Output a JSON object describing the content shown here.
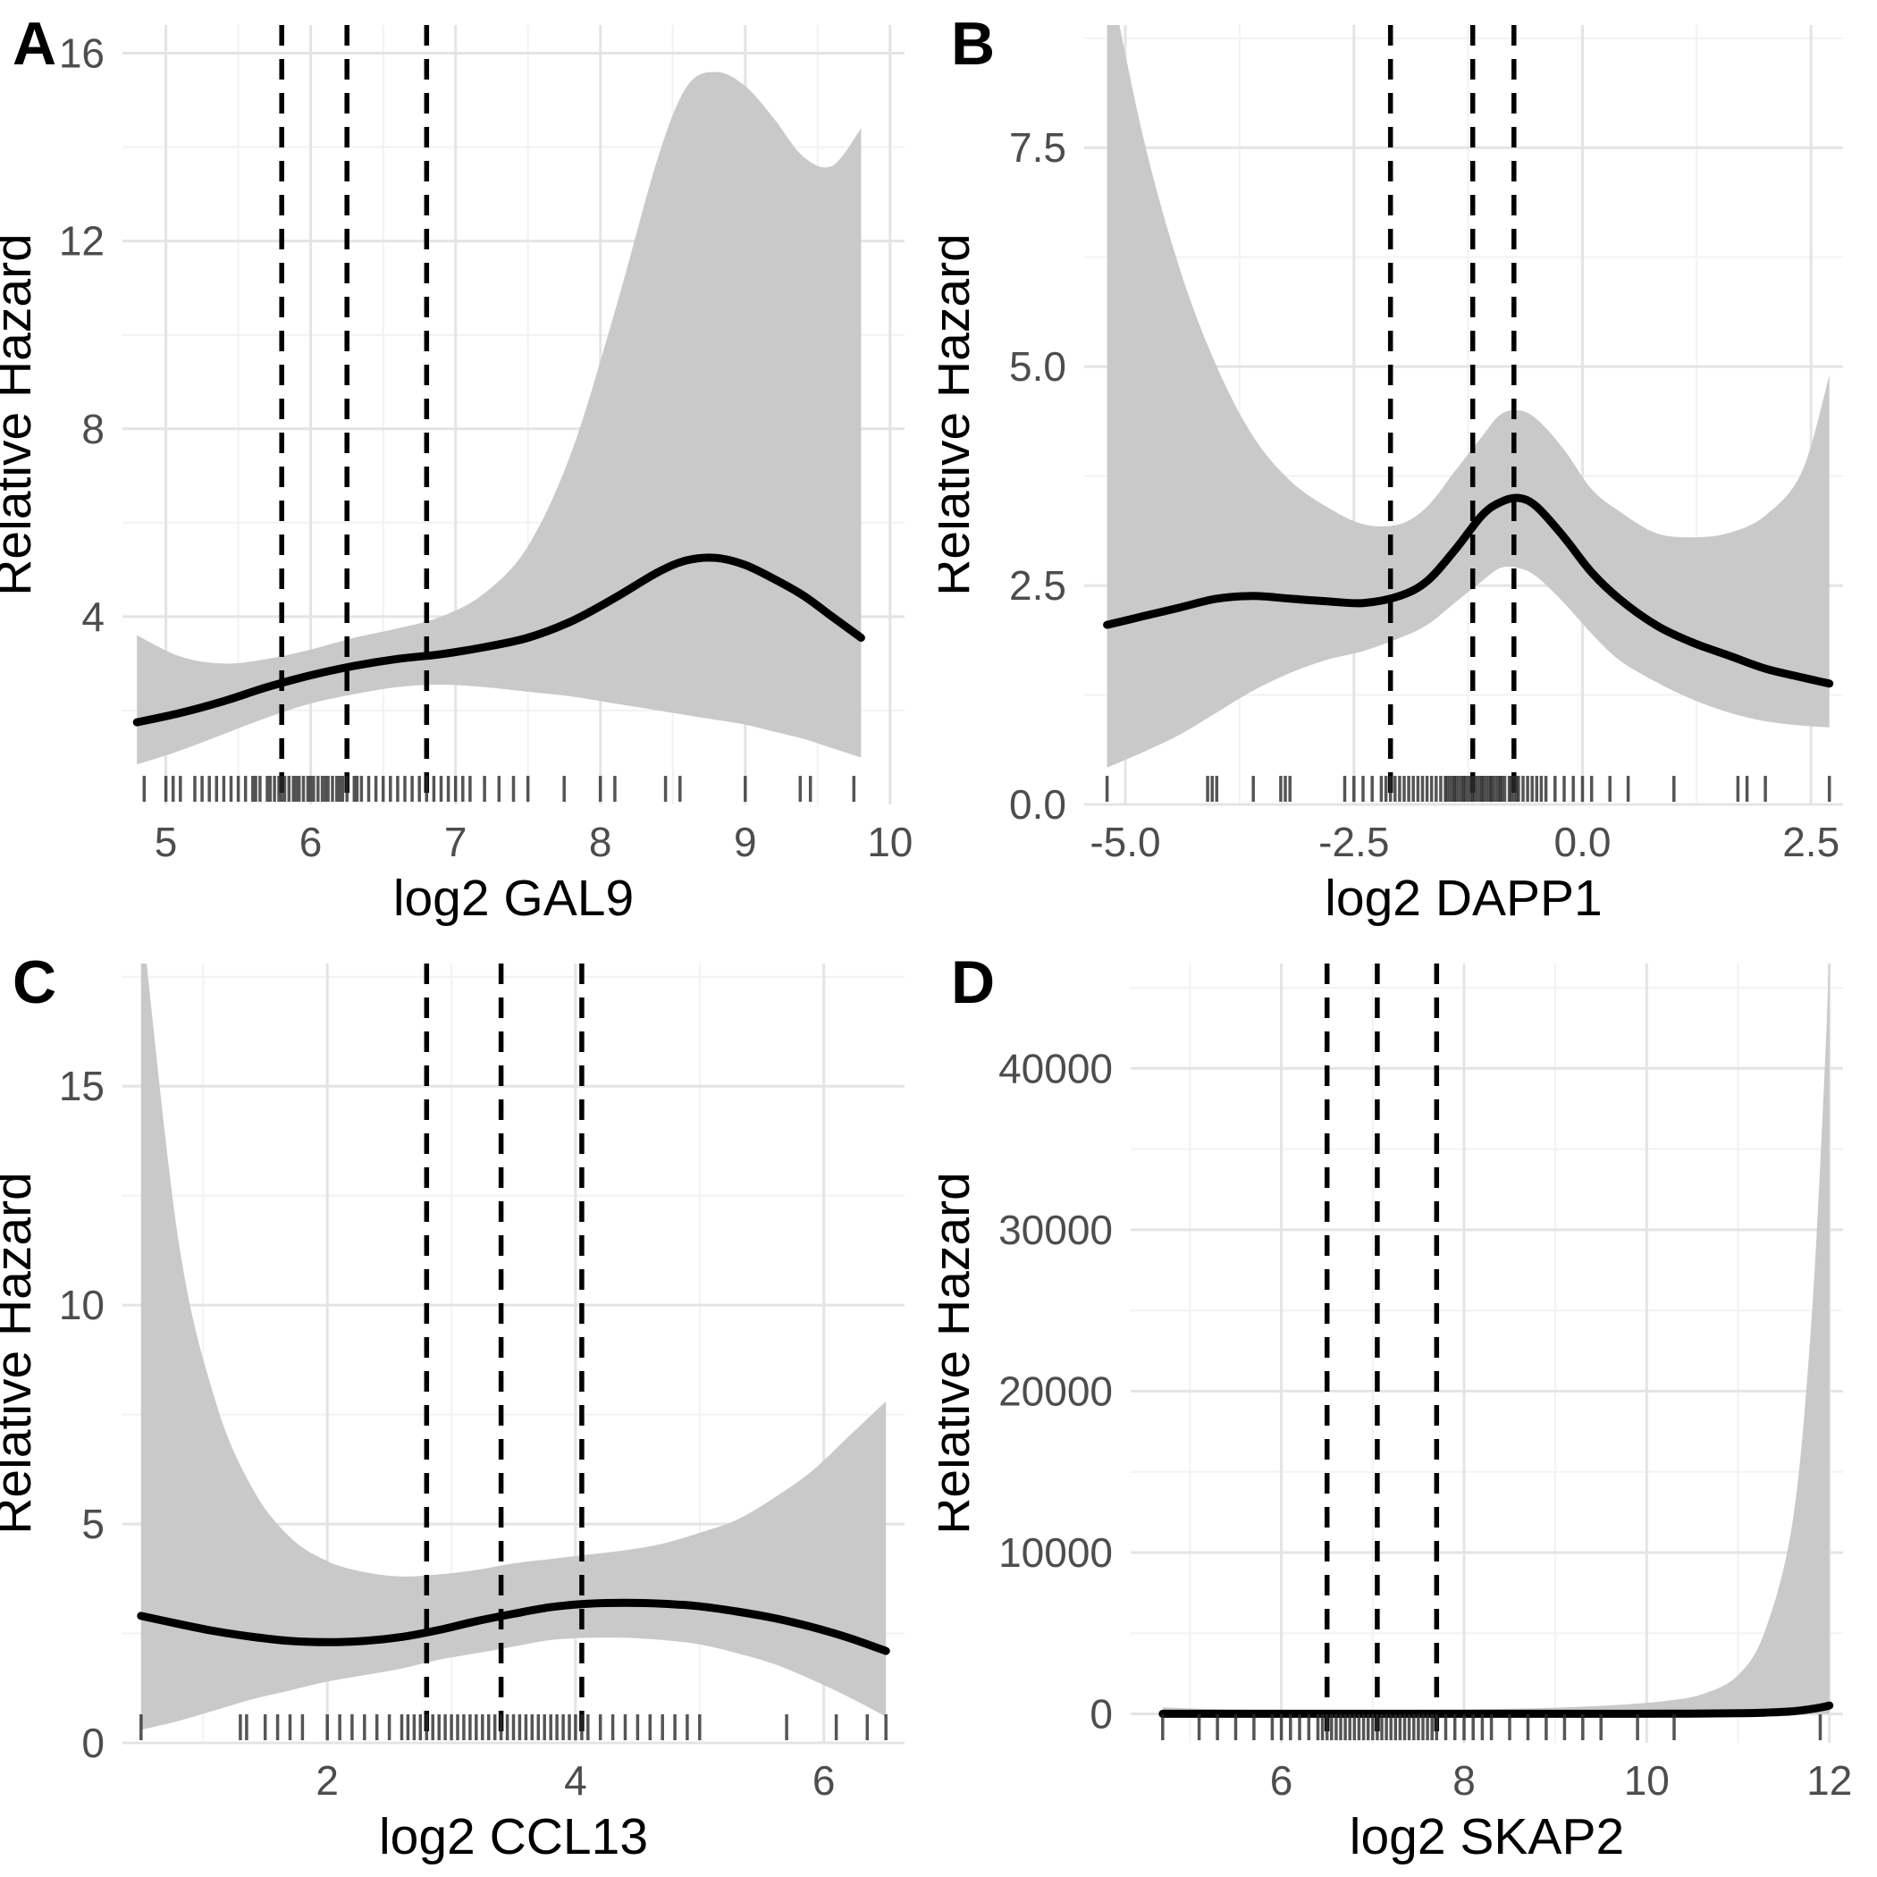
{
  "figure": {
    "background": "#ffffff",
    "panel_labels": [
      "A",
      "B",
      "C",
      "D"
    ]
  },
  "colors": {
    "background": "#ffffff",
    "grid_major": "#e4e4e4",
    "grid_minor": "#f2f2f2",
    "band": "#c9c9c9",
    "line": "#000000",
    "quartile": "#000000",
    "rug": "#2b2b2b",
    "tick_text": "#4d4d4d",
    "title_text": "#000000"
  },
  "chart_data": [
    {
      "type": "line",
      "panel_label": "A",
      "xlabel": "log2 GAL9",
      "ylabel": "Relative Hazard",
      "xlim": [
        4.7,
        10.1
      ],
      "ylim": [
        0,
        16.6
      ],
      "x_ticks": [
        5,
        6,
        7,
        8,
        9,
        10
      ],
      "x_tick_labels": [
        "5",
        "6",
        "7",
        "8",
        "9",
        "10"
      ],
      "y_ticks": [
        4,
        8,
        12,
        16
      ],
      "y_tick_labels": [
        "4",
        "8",
        "12",
        "16"
      ],
      "x": [
        4.8,
        5.1,
        5.4,
        5.7,
        6.0,
        6.3,
        6.6,
        6.9,
        7.2,
        7.5,
        7.8,
        8.1,
        8.4,
        8.6,
        8.8,
        9.0,
        9.2,
        9.4,
        9.6,
        9.8
      ],
      "fit": [
        1.75,
        1.95,
        2.2,
        2.5,
        2.75,
        2.95,
        3.1,
        3.2,
        3.35,
        3.55,
        3.9,
        4.4,
        4.95,
        5.2,
        5.25,
        5.1,
        4.8,
        4.45,
        4.0,
        3.55
      ],
      "ci_upper": [
        3.6,
        3.15,
        3.0,
        3.1,
        3.3,
        3.55,
        3.75,
        4.0,
        4.5,
        5.5,
        7.5,
        10.5,
        13.8,
        15.3,
        15.6,
        15.3,
        14.6,
        13.8,
        13.6,
        14.4
      ],
      "ci_lower": [
        0.85,
        1.15,
        1.5,
        1.85,
        2.15,
        2.35,
        2.5,
        2.55,
        2.5,
        2.4,
        2.3,
        2.15,
        2.0,
        1.9,
        1.8,
        1.7,
        1.55,
        1.4,
        1.2,
        1.0
      ],
      "quartile_lines": [
        5.8,
        6.25,
        6.8
      ],
      "rug": [
        4.85,
        5.0,
        5.05,
        5.1,
        5.2,
        5.25,
        5.3,
        5.35,
        5.4,
        5.45,
        5.5,
        5.55,
        5.6,
        5.62,
        5.65,
        5.7,
        5.72,
        5.75,
        5.78,
        5.8,
        5.82,
        5.85,
        5.88,
        5.9,
        5.92,
        5.95,
        5.98,
        6.0,
        6.02,
        6.05,
        6.08,
        6.1,
        6.12,
        6.15,
        6.18,
        6.2,
        6.22,
        6.25,
        6.3,
        6.32,
        6.35,
        6.4,
        6.45,
        6.5,
        6.55,
        6.6,
        6.65,
        6.7,
        6.75,
        6.8,
        6.85,
        6.9,
        6.95,
        7.0,
        7.05,
        7.1,
        7.2,
        7.3,
        7.4,
        7.5,
        7.75,
        8.0,
        8.1,
        8.45,
        8.55,
        9.0,
        9.38,
        9.45,
        9.75
      ]
    },
    {
      "type": "line",
      "panel_label": "B",
      "xlabel": "log2 DAPP1",
      "ylabel": "Relative Hazard",
      "xlim": [
        -5.45,
        2.85
      ],
      "ylim": [
        0,
        8.9
      ],
      "x_ticks": [
        -5.0,
        -2.5,
        0.0,
        2.5
      ],
      "x_tick_labels": [
        "-5.0",
        "-2.5",
        "0.0",
        "2.5"
      ],
      "y_ticks": [
        0.0,
        2.5,
        5.0,
        7.5
      ],
      "y_tick_labels": [
        "0.0",
        "2.5",
        "5.0",
        "7.5"
      ],
      "x": [
        -5.2,
        -4.8,
        -4.4,
        -4.0,
        -3.6,
        -3.2,
        -2.8,
        -2.4,
        -2.0,
        -1.7,
        -1.4,
        -1.1,
        -0.9,
        -0.7,
        -0.5,
        -0.2,
        0.1,
        0.4,
        0.8,
        1.2,
        1.6,
        2.0,
        2.4,
        2.7
      ],
      "fit": [
        2.05,
        2.15,
        2.25,
        2.35,
        2.38,
        2.35,
        2.32,
        2.3,
        2.38,
        2.55,
        2.9,
        3.3,
        3.45,
        3.5,
        3.4,
        3.05,
        2.65,
        2.35,
        2.05,
        1.85,
        1.7,
        1.55,
        1.45,
        1.38
      ],
      "ci_upper": [
        9.6,
        7.6,
        6.1,
        5.0,
        4.2,
        3.7,
        3.4,
        3.2,
        3.2,
        3.4,
        3.8,
        4.2,
        4.45,
        4.5,
        4.4,
        4.05,
        3.6,
        3.35,
        3.1,
        3.05,
        3.1,
        3.3,
        3.8,
        4.9
      ],
      "ci_lower": [
        0.42,
        0.6,
        0.8,
        1.05,
        1.3,
        1.5,
        1.65,
        1.75,
        1.9,
        2.05,
        2.3,
        2.55,
        2.7,
        2.7,
        2.6,
        2.3,
        1.95,
        1.65,
        1.4,
        1.2,
        1.05,
        0.95,
        0.9,
        0.88
      ],
      "quartile_lines": [
        -2.1,
        -1.2,
        -0.75
      ],
      "rug": [
        -5.2,
        -4.1,
        -4.05,
        -4.0,
        -3.6,
        -3.3,
        -3.25,
        -3.2,
        -2.6,
        -2.5,
        -2.4,
        -2.3,
        -2.2,
        -2.15,
        -2.1,
        -2.05,
        -2.0,
        -1.95,
        -1.9,
        -1.85,
        -1.8,
        -1.75,
        -1.7,
        -1.65,
        -1.6,
        -1.55,
        -1.5,
        -1.48,
        -1.45,
        -1.42,
        -1.4,
        -1.38,
        -1.35,
        -1.32,
        -1.3,
        -1.28,
        -1.25,
        -1.22,
        -1.2,
        -1.18,
        -1.15,
        -1.12,
        -1.1,
        -1.08,
        -1.05,
        -1.02,
        -1.0,
        -0.98,
        -0.95,
        -0.92,
        -0.9,
        -0.88,
        -0.85,
        -0.8,
        -0.78,
        -0.75,
        -0.72,
        -0.7,
        -0.65,
        -0.6,
        -0.55,
        -0.5,
        -0.45,
        -0.4,
        -0.3,
        -0.2,
        -0.1,
        0.0,
        0.1,
        0.3,
        0.5,
        1.0,
        1.7,
        1.8,
        2.0,
        2.7
      ],
      "x_tick_decimals": 1
    },
    {
      "type": "line",
      "panel_label": "C",
      "xlabel": "log2 CCL13",
      "ylabel": "Relative Hazard",
      "xlim": [
        0.35,
        6.65
      ],
      "ylim": [
        0,
        17.8
      ],
      "x_ticks": [
        2,
        4,
        6
      ],
      "x_tick_labels": [
        "2",
        "4",
        "6"
      ],
      "y_ticks": [
        0,
        5,
        10,
        15
      ],
      "y_tick_labels": [
        "0",
        "5",
        "10",
        "15"
      ],
      "x": [
        0.5,
        0.8,
        1.1,
        1.4,
        1.7,
        2.0,
        2.3,
        2.6,
        2.9,
        3.2,
        3.5,
        3.8,
        4.1,
        4.4,
        4.7,
        5.0,
        5.3,
        5.6,
        5.9,
        6.2,
        6.5
      ],
      "fit": [
        2.9,
        2.72,
        2.55,
        2.42,
        2.33,
        2.3,
        2.33,
        2.42,
        2.58,
        2.78,
        2.95,
        3.1,
        3.18,
        3.2,
        3.18,
        3.12,
        3.0,
        2.85,
        2.65,
        2.4,
        2.1
      ],
      "ci_upper": [
        19.0,
        11.5,
        7.8,
        5.8,
        4.7,
        4.15,
        3.9,
        3.8,
        3.85,
        3.95,
        4.1,
        4.2,
        4.3,
        4.4,
        4.55,
        4.8,
        5.1,
        5.6,
        6.2,
        7.0,
        7.8
      ],
      "ci_lower": [
        0.3,
        0.5,
        0.75,
        1.0,
        1.2,
        1.4,
        1.55,
        1.7,
        1.9,
        2.05,
        2.2,
        2.35,
        2.4,
        2.4,
        2.35,
        2.25,
        2.05,
        1.8,
        1.45,
        1.05,
        0.6
      ],
      "quartile_lines": [
        2.8,
        3.4,
        4.05
      ],
      "rug": [
        0.5,
        1.3,
        1.35,
        1.5,
        1.6,
        1.7,
        1.8,
        2.0,
        2.1,
        2.2,
        2.3,
        2.4,
        2.5,
        2.6,
        2.65,
        2.7,
        2.75,
        2.8,
        2.85,
        2.9,
        2.95,
        3.0,
        3.05,
        3.1,
        3.15,
        3.2,
        3.25,
        3.3,
        3.35,
        3.4,
        3.45,
        3.5,
        3.55,
        3.6,
        3.65,
        3.7,
        3.75,
        3.8,
        3.85,
        3.9,
        3.95,
        4.0,
        4.05,
        4.1,
        4.2,
        4.3,
        4.4,
        4.5,
        4.6,
        4.7,
        4.8,
        4.9,
        5.0,
        5.7,
        6.1,
        6.35,
        6.5
      ]
    },
    {
      "type": "line",
      "panel_label": "D",
      "xlabel": "log2 SKAP2",
      "ylabel": "Relative Hazard",
      "xlim": [
        4.35,
        12.15
      ],
      "ylim": [
        -1800,
        46500
      ],
      "x_ticks": [
        6,
        8,
        10,
        12
      ],
      "x_tick_labels": [
        "6",
        "8",
        "10",
        "12"
      ],
      "y_ticks": [
        0,
        10000,
        20000,
        30000,
        40000
      ],
      "y_tick_labels": [
        "0",
        "10000",
        "20000",
        "30000",
        "40000"
      ],
      "x": [
        4.7,
        5.2,
        5.7,
        6.2,
        6.7,
        7.2,
        7.7,
        8.2,
        8.7,
        9.2,
        9.7,
        10.2,
        10.6,
        11.0,
        11.3,
        11.6,
        11.8,
        11.95,
        12.0
      ],
      "fit": [
        5,
        5,
        5,
        5,
        5,
        5,
        5,
        5,
        5,
        6,
        8,
        12,
        20,
        40,
        80,
        160,
        300,
        450,
        520
      ],
      "ci_upper": [
        400,
        300,
        260,
        240,
        230,
        240,
        260,
        290,
        340,
        420,
        560,
        800,
        1200,
        2400,
        5200,
        12000,
        24000,
        40000,
        48000
      ],
      "ci_lower": [
        0,
        0,
        0,
        0,
        0,
        0,
        0,
        0,
        0,
        0,
        0,
        0,
        0,
        0,
        0,
        0,
        0,
        0,
        0
      ],
      "quartile_lines": [
        6.5,
        7.05,
        7.7
      ],
      "rug": [
        4.7,
        5.1,
        5.3,
        5.5,
        5.7,
        5.9,
        6.0,
        6.1,
        6.2,
        6.3,
        6.4,
        6.45,
        6.5,
        6.55,
        6.6,
        6.65,
        6.7,
        6.75,
        6.8,
        6.85,
        6.9,
        6.95,
        7.0,
        7.05,
        7.1,
        7.15,
        7.2,
        7.25,
        7.3,
        7.35,
        7.4,
        7.45,
        7.5,
        7.55,
        7.6,
        7.65,
        7.7,
        7.8,
        7.9,
        8.0,
        8.1,
        8.2,
        8.3,
        8.5,
        8.7,
        8.9,
        9.1,
        9.3,
        9.5,
        9.9,
        10.3,
        11.9
      ]
    }
  ]
}
